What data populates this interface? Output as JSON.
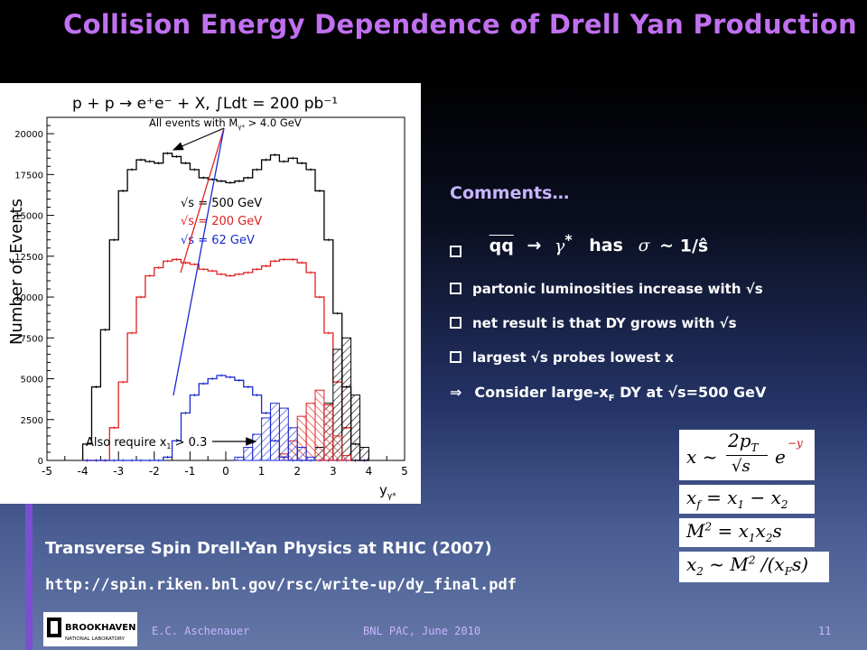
{
  "slide": {
    "title": "Collision Energy Dependence of Drell Yan Production",
    "comments_heading": "Comments…",
    "bullets": [
      "partonic luminosities increase with √s",
      "net result is that DY grows with √s",
      "largest √s probes lowest x"
    ],
    "formula_bullet": {
      "lhs": "qq",
      "arrow": "→",
      "gamma": "γ",
      "star": "*",
      "has": "has",
      "sigma": "σ",
      "tilde": "~",
      "rhs": "1/ŝ"
    },
    "implication": {
      "arrow": "⇒",
      "pre": "Consider large-x",
      "sub": "F",
      "post": " DY at √s=500 GeV"
    },
    "equations": {
      "eq1": {
        "lhs": "x ~",
        "num": "2p",
        "num_sub": "T",
        "den": "√s",
        "exp_base": "e",
        "exp": "−y"
      },
      "eq2": {
        "lhs": "x",
        "lhs_sub": "f",
        "rhs": "= x",
        "r1": "1",
        "mid": " − x",
        "r2": "2"
      },
      "eq3": {
        "lhs": "M",
        "lhs_sup": "2",
        "rhs": " = x",
        "r1": "1",
        "mid": "x",
        "r2": "2",
        "end": "s"
      },
      "eq4": {
        "lhs": "x",
        "lhs_sub": "2",
        "rhs": " ~ M",
        "sup": "2",
        "mid": " /(x",
        "sub2": "F",
        "end": "s)"
      }
    },
    "reference_title": "Transverse Spin Drell-Yan Physics at RHIC (2007)",
    "reference_url": "http://spin.riken.bnl.gov/rsc/write-up/dy_final.pdf",
    "logo_text": "BROOKHAVEN",
    "logo_subtext": "NATIONAL LABORATORY",
    "footer_author": "E.C. Aschenauer",
    "footer_event": "BNL PAC, June 2010",
    "page_number": "11"
  },
  "colors": {
    "title": "#c070f0",
    "accent": "#7a4fd0",
    "s500": "#000000",
    "s200": "#e02020",
    "s62": "#1a2ad0"
  },
  "chart_data": {
    "type": "histogram",
    "title": "p + p → e⁺e⁻ + X, ∫Ldt = 200 pb⁻¹",
    "xlabel": "y",
    "xlabel_sub": "γ*",
    "ylabel": "Number of Events",
    "xlim": [
      -5,
      5
    ],
    "ylim": [
      0,
      21000
    ],
    "xticks": [
      -5,
      -4,
      -3,
      -2,
      -1,
      0,
      1,
      2,
      3,
      4,
      5
    ],
    "yticks": [
      0,
      2500,
      5000,
      7500,
      10000,
      12500,
      15000,
      17500,
      20000
    ],
    "bin_edges_start": -4.0,
    "bin_width": 0.25,
    "series": [
      {
        "name": "√s = 500 GeV",
        "color": "#000000",
        "values": [
          1000,
          4500,
          8000,
          13500,
          16500,
          17800,
          18400,
          18300,
          18200,
          18800,
          18600,
          18200,
          17800,
          17300,
          17200,
          17100,
          17000,
          17100,
          17300,
          17800,
          18400,
          18700,
          18300,
          18500,
          18200,
          17800,
          16500,
          13500,
          9000,
          4500,
          1000,
          0
        ]
      },
      {
        "name": "√s = 200 GeV",
        "color": "#e02020",
        "values": [
          0,
          0,
          0,
          2000,
          4800,
          7800,
          10000,
          11300,
          11800,
          12200,
          12300,
          12100,
          12000,
          11700,
          11600,
          11400,
          11300,
          11400,
          11500,
          11700,
          11900,
          12200,
          12300,
          12300,
          12100,
          11500,
          10000,
          7800,
          4800,
          2000,
          0,
          0
        ]
      },
      {
        "name": "√s = 62 GeV",
        "color": "#1a2ad0",
        "values": [
          0,
          0,
          0,
          0,
          0,
          0,
          0,
          0,
          0,
          200,
          1200,
          2900,
          4000,
          4700,
          5000,
          5200,
          5100,
          4900,
          4500,
          4000,
          2900,
          1200,
          200,
          0,
          0,
          0,
          0,
          0,
          0,
          0,
          0,
          0
        ]
      },
      {
        "name": "All events with M > 4.0 GeV, also require x1 > 0.3 (√s = 500 GeV)",
        "color": "#000000",
        "hatched": true,
        "values": [
          0,
          0,
          0,
          0,
          0,
          0,
          0,
          0,
          0,
          0,
          0,
          0,
          0,
          0,
          0,
          0,
          0,
          0,
          0,
          0,
          0,
          0,
          0,
          0,
          0,
          0,
          800,
          3500,
          6800,
          7500,
          4000,
          800
        ]
      },
      {
        "name": "All events with M > 4.0 GeV, also require x1 > 0.3 (√s = 200 GeV)",
        "color": "#e02020",
        "hatched": true,
        "values": [
          0,
          0,
          0,
          0,
          0,
          0,
          0,
          0,
          0,
          0,
          0,
          0,
          0,
          0,
          0,
          0,
          0,
          0,
          0,
          0,
          0,
          0,
          400,
          1200,
          2700,
          3500,
          4300,
          3400,
          1500,
          300,
          0,
          0
        ]
      },
      {
        "name": "All events with M > 4.0 GeV, also require x1 > 0.3 (√s = 62 GeV)",
        "color": "#1a2ad0",
        "hatched": true,
        "values": [
          0,
          0,
          0,
          0,
          0,
          0,
          0,
          0,
          0,
          0,
          0,
          0,
          0,
          0,
          0,
          0,
          0,
          200,
          800,
          1600,
          2600,
          3500,
          3200,
          2000,
          800,
          200,
          0,
          0,
          0,
          0,
          0,
          0
        ]
      }
    ],
    "legend": [
      {
        "label": "√s = 500 GeV",
        "color": "#000000"
      },
      {
        "label": "√s = 200 GeV",
        "color": "#e02020"
      },
      {
        "label": "√s = 62 GeV",
        "color": "#1a2ad0"
      }
    ],
    "annotations": [
      {
        "pre": "All events with M",
        "sub": "γ*",
        "post": " > 4.0 GeV"
      },
      {
        "pre": "Also require x",
        "sub": "1",
        "post": " > 0.3"
      }
    ]
  }
}
